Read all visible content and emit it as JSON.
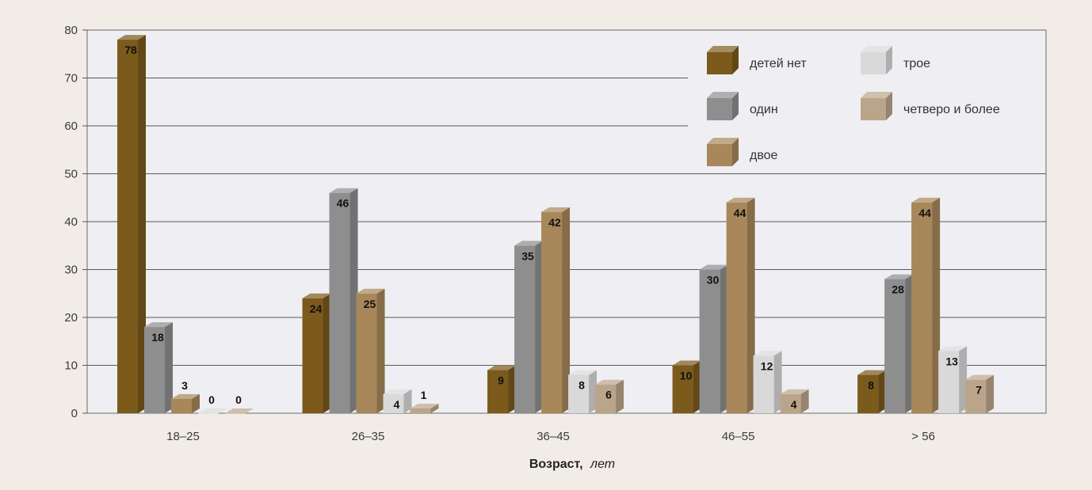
{
  "colors": {
    "page_bg": "#f1ede6",
    "plot_bg": "#efeff3",
    "grid": "#5a5a5a",
    "series": [
      "#7b5a1c",
      "#8e8e8e",
      "#a8875a",
      "#d9d9d9",
      "#bba58a"
    ]
  },
  "chart_data": {
    "type": "bar",
    "title": "",
    "xlabel_bold": "Возраст,",
    "xlabel_italic": "лет",
    "ylabel": "",
    "ylim": [
      0,
      80
    ],
    "yticks": [
      "0",
      "10",
      "20",
      "30",
      "40",
      "50",
      "60",
      "70",
      "80"
    ],
    "grid": true,
    "legend_position": "top-right",
    "categories": [
      "18–25",
      "26–35",
      "36–45",
      "46–55",
      "> 56"
    ],
    "series": [
      {
        "name": "детей нет",
        "values": [
          78,
          24,
          9,
          10,
          8
        ]
      },
      {
        "name": "один",
        "values": [
          18,
          46,
          35,
          30,
          28
        ]
      },
      {
        "name": "двое",
        "values": [
          3,
          25,
          42,
          44,
          44
        ]
      },
      {
        "name": "трое",
        "values": [
          0,
          4,
          8,
          12,
          13
        ]
      },
      {
        "name": "четверо и более",
        "values": [
          0,
          1,
          6,
          4,
          7
        ]
      }
    ],
    "value_labels": [
      [
        "78",
        "18",
        "3",
        "0",
        "0"
      ],
      [
        "24",
        "46",
        "25",
        "4",
        "1"
      ],
      [
        "9",
        "35",
        "42",
        "8",
        "6"
      ],
      [
        "10",
        "30",
        "44",
        "12",
        "4"
      ],
      [
        "8",
        "28",
        "44",
        "13",
        "7"
      ]
    ]
  }
}
